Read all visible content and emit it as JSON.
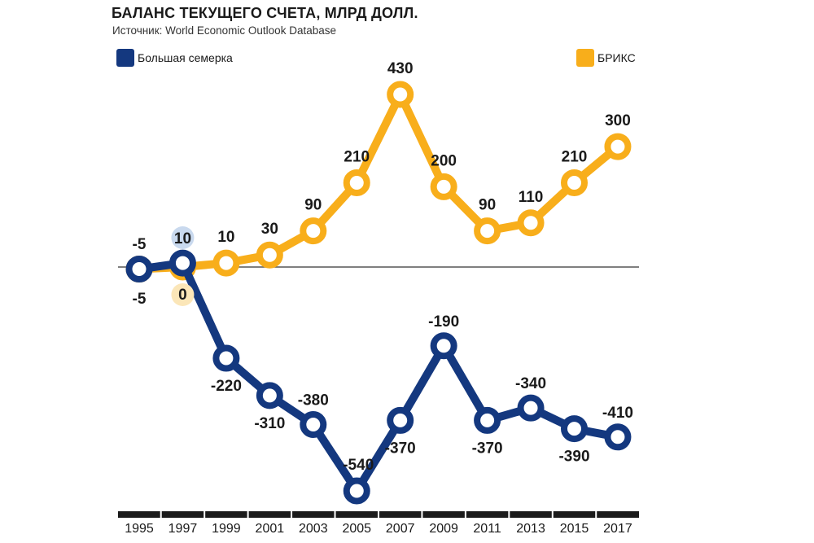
{
  "title": "БАЛАНС ТЕКУЩЕГО СЧЕТА, МЛРД  ДОЛЛ.",
  "subtitle": "Источник: World Economic Outlook Database",
  "colors": {
    "g7": "#14387f",
    "brics": "#f8ae1b"
  },
  "chart_data": {
    "type": "line",
    "x": [
      "1995",
      "1997",
      "1999",
      "2001",
      "2003",
      "2005",
      "2007",
      "2009",
      "2011",
      "2013",
      "2015",
      "2017"
    ],
    "series": [
      {
        "key": "g7",
        "name": "Большая семерка",
        "values": [
          -5,
          10,
          -220,
          -310,
          -380,
          -540,
          -370,
          -190,
          -370,
          -340,
          -390,
          -410
        ]
      },
      {
        "key": "brics",
        "name": "БРИКС",
        "values": [
          -5,
          0,
          10,
          30,
          90,
          210,
          430,
          200,
          90,
          110,
          210,
          300
        ]
      }
    ],
    "data_labels": {
      "g7": [
        "-5",
        "10",
        "-220",
        "-310",
        "-380",
        "-540",
        "-370",
        "-190",
        "-370",
        "-340",
        "-390",
        "-410"
      ],
      "brics": [
        "-5",
        "0",
        "10",
        "30",
        "90",
        "210",
        "430",
        "200",
        "90",
        "110",
        "210",
        "300"
      ]
    },
    "ylim": [
      -600,
      480
    ],
    "legend": "top",
    "grid": false
  }
}
